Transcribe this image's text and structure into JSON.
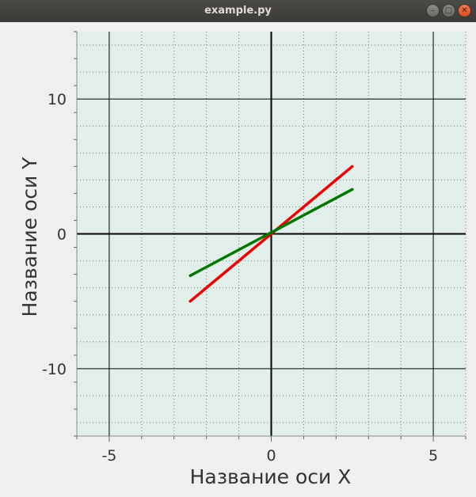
{
  "window": {
    "title": "example.py",
    "buttons": {
      "minimize": "–",
      "maximize": "□",
      "close": "✕"
    }
  },
  "chart_data": {
    "type": "line",
    "xlabel": "Название оси X",
    "ylabel": "Название оси Y",
    "xlim": [
      -6,
      6
    ],
    "ylim": [
      -15,
      15
    ],
    "xticks": [
      -5,
      0,
      5
    ],
    "yticks": [
      -10,
      0,
      10
    ],
    "xtick_labels": [
      "-5",
      "0",
      "5"
    ],
    "ytick_labels": [
      "-10",
      "0",
      "10"
    ],
    "grid": {
      "major": true,
      "minor": true,
      "minor_step_x": 1,
      "minor_step_y": 2
    },
    "series": [
      {
        "color": "#ee0000",
        "x": [
          -2.5,
          2.5
        ],
        "y": [
          -5,
          5
        ]
      },
      {
        "color": "#007700",
        "x": [
          -2.5,
          2.5
        ],
        "y": [
          -3.1,
          3.3
        ]
      }
    ],
    "colors": {
      "plot_bg": "#e2eeea",
      "grid_major": "#000000",
      "grid_minor": "#777777"
    }
  }
}
